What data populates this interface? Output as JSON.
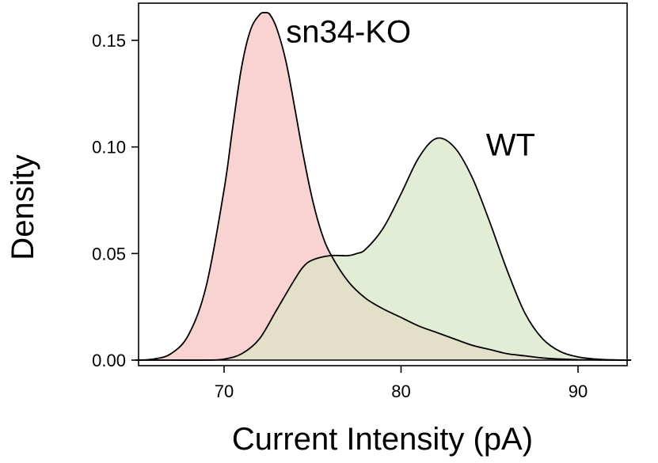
{
  "chart_data": {
    "type": "area",
    "title": "",
    "xlabel": "Current Intensity (pA)",
    "ylabel": "Density",
    "xlim": [
      65,
      93
    ],
    "ylim": [
      0,
      0.165
    ],
    "grid": false,
    "x_ticks": [
      70,
      80,
      90
    ],
    "x_tick_labels": [
      "70",
      "80",
      "90"
    ],
    "y_ticks": [
      0,
      0.05,
      0.1,
      0.15
    ],
    "y_tick_labels": [
      "0.00",
      "0.05",
      "0.10",
      "0.15"
    ],
    "series": [
      {
        "name": "sn34-KO",
        "fill": "#f9d3d2",
        "stroke": "#000000",
        "x": [
          65,
          66,
          67,
          68,
          69,
          70,
          70.5,
          71,
          71.5,
          72,
          72.3,
          72.6,
          73,
          73.5,
          74,
          74.5,
          75,
          75.5,
          76,
          77,
          78,
          79,
          80,
          81,
          82,
          83,
          84,
          85,
          86,
          87,
          88,
          89,
          90,
          91,
          92,
          93
        ],
        "y": [
          0.0,
          0.0005,
          0.003,
          0.012,
          0.035,
          0.08,
          0.11,
          0.138,
          0.155,
          0.162,
          0.163,
          0.162,
          0.155,
          0.14,
          0.118,
          0.095,
          0.075,
          0.06,
          0.05,
          0.037,
          0.029,
          0.024,
          0.02,
          0.016,
          0.013,
          0.01,
          0.007,
          0.005,
          0.003,
          0.002,
          0.001,
          0.0005,
          0.0002,
          0.0001,
          0.0,
          0.0
        ]
      },
      {
        "name": "WT",
        "fill": "#d8e4c4",
        "stroke": "#000000",
        "x": [
          65,
          67,
          69,
          70,
          71,
          72,
          73,
          74,
          74.5,
          75,
          76,
          77,
          77.5,
          78,
          79,
          80,
          81,
          82,
          83,
          84,
          85,
          86,
          87,
          88,
          89,
          90,
          91,
          92,
          93
        ],
        "y": [
          0.0,
          0.0,
          0.0,
          0.0005,
          0.003,
          0.01,
          0.024,
          0.038,
          0.044,
          0.047,
          0.049,
          0.049,
          0.05,
          0.052,
          0.062,
          0.078,
          0.095,
          0.104,
          0.1,
          0.086,
          0.065,
          0.042,
          0.022,
          0.01,
          0.004,
          0.0015,
          0.0005,
          0.0001,
          0.0
        ]
      }
    ],
    "annotations": [
      {
        "text": "sn34-KO",
        "x": 73.5,
        "y": 0.149
      },
      {
        "text": "WT",
        "x": 84.8,
        "y": 0.096
      }
    ]
  }
}
